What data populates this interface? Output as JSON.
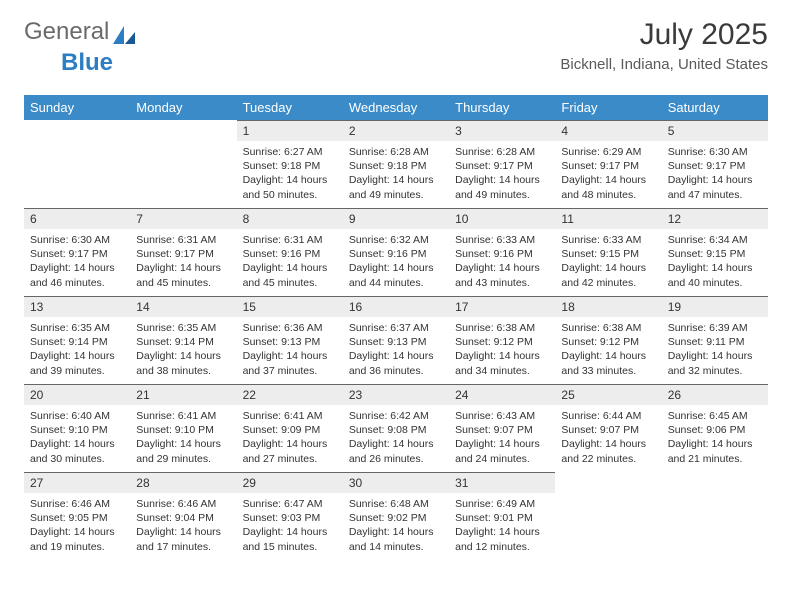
{
  "brand": {
    "text1": "General",
    "text2": "Blue"
  },
  "header": {
    "month_title": "July 2025",
    "location": "Bicknell, Indiana, United States"
  },
  "colors": {
    "header_bg": "#3b8bc9",
    "header_text": "#ffffff",
    "daynum_bg": "#ededed",
    "daynum_border": "#666666",
    "body_text": "#333333"
  },
  "day_labels": [
    "Sunday",
    "Monday",
    "Tuesday",
    "Wednesday",
    "Thursday",
    "Friday",
    "Saturday"
  ],
  "weeks": [
    [
      {
        "empty": true
      },
      {
        "empty": true
      },
      {
        "day": "1",
        "sunrise": "Sunrise: 6:27 AM",
        "sunset": "Sunset: 9:18 PM",
        "daylight": "Daylight: 14 hours and 50 minutes."
      },
      {
        "day": "2",
        "sunrise": "Sunrise: 6:28 AM",
        "sunset": "Sunset: 9:18 PM",
        "daylight": "Daylight: 14 hours and 49 minutes."
      },
      {
        "day": "3",
        "sunrise": "Sunrise: 6:28 AM",
        "sunset": "Sunset: 9:17 PM",
        "daylight": "Daylight: 14 hours and 49 minutes."
      },
      {
        "day": "4",
        "sunrise": "Sunrise: 6:29 AM",
        "sunset": "Sunset: 9:17 PM",
        "daylight": "Daylight: 14 hours and 48 minutes."
      },
      {
        "day": "5",
        "sunrise": "Sunrise: 6:30 AM",
        "sunset": "Sunset: 9:17 PM",
        "daylight": "Daylight: 14 hours and 47 minutes."
      }
    ],
    [
      {
        "day": "6",
        "sunrise": "Sunrise: 6:30 AM",
        "sunset": "Sunset: 9:17 PM",
        "daylight": "Daylight: 14 hours and 46 minutes."
      },
      {
        "day": "7",
        "sunrise": "Sunrise: 6:31 AM",
        "sunset": "Sunset: 9:17 PM",
        "daylight": "Daylight: 14 hours and 45 minutes."
      },
      {
        "day": "8",
        "sunrise": "Sunrise: 6:31 AM",
        "sunset": "Sunset: 9:16 PM",
        "daylight": "Daylight: 14 hours and 45 minutes."
      },
      {
        "day": "9",
        "sunrise": "Sunrise: 6:32 AM",
        "sunset": "Sunset: 9:16 PM",
        "daylight": "Daylight: 14 hours and 44 minutes."
      },
      {
        "day": "10",
        "sunrise": "Sunrise: 6:33 AM",
        "sunset": "Sunset: 9:16 PM",
        "daylight": "Daylight: 14 hours and 43 minutes."
      },
      {
        "day": "11",
        "sunrise": "Sunrise: 6:33 AM",
        "sunset": "Sunset: 9:15 PM",
        "daylight": "Daylight: 14 hours and 42 minutes."
      },
      {
        "day": "12",
        "sunrise": "Sunrise: 6:34 AM",
        "sunset": "Sunset: 9:15 PM",
        "daylight": "Daylight: 14 hours and 40 minutes."
      }
    ],
    [
      {
        "day": "13",
        "sunrise": "Sunrise: 6:35 AM",
        "sunset": "Sunset: 9:14 PM",
        "daylight": "Daylight: 14 hours and 39 minutes."
      },
      {
        "day": "14",
        "sunrise": "Sunrise: 6:35 AM",
        "sunset": "Sunset: 9:14 PM",
        "daylight": "Daylight: 14 hours and 38 minutes."
      },
      {
        "day": "15",
        "sunrise": "Sunrise: 6:36 AM",
        "sunset": "Sunset: 9:13 PM",
        "daylight": "Daylight: 14 hours and 37 minutes."
      },
      {
        "day": "16",
        "sunrise": "Sunrise: 6:37 AM",
        "sunset": "Sunset: 9:13 PM",
        "daylight": "Daylight: 14 hours and 36 minutes."
      },
      {
        "day": "17",
        "sunrise": "Sunrise: 6:38 AM",
        "sunset": "Sunset: 9:12 PM",
        "daylight": "Daylight: 14 hours and 34 minutes."
      },
      {
        "day": "18",
        "sunrise": "Sunrise: 6:38 AM",
        "sunset": "Sunset: 9:12 PM",
        "daylight": "Daylight: 14 hours and 33 minutes."
      },
      {
        "day": "19",
        "sunrise": "Sunrise: 6:39 AM",
        "sunset": "Sunset: 9:11 PM",
        "daylight": "Daylight: 14 hours and 32 minutes."
      }
    ],
    [
      {
        "day": "20",
        "sunrise": "Sunrise: 6:40 AM",
        "sunset": "Sunset: 9:10 PM",
        "daylight": "Daylight: 14 hours and 30 minutes."
      },
      {
        "day": "21",
        "sunrise": "Sunrise: 6:41 AM",
        "sunset": "Sunset: 9:10 PM",
        "daylight": "Daylight: 14 hours and 29 minutes."
      },
      {
        "day": "22",
        "sunrise": "Sunrise: 6:41 AM",
        "sunset": "Sunset: 9:09 PM",
        "daylight": "Daylight: 14 hours and 27 minutes."
      },
      {
        "day": "23",
        "sunrise": "Sunrise: 6:42 AM",
        "sunset": "Sunset: 9:08 PM",
        "daylight": "Daylight: 14 hours and 26 minutes."
      },
      {
        "day": "24",
        "sunrise": "Sunrise: 6:43 AM",
        "sunset": "Sunset: 9:07 PM",
        "daylight": "Daylight: 14 hours and 24 minutes."
      },
      {
        "day": "25",
        "sunrise": "Sunrise: 6:44 AM",
        "sunset": "Sunset: 9:07 PM",
        "daylight": "Daylight: 14 hours and 22 minutes."
      },
      {
        "day": "26",
        "sunrise": "Sunrise: 6:45 AM",
        "sunset": "Sunset: 9:06 PM",
        "daylight": "Daylight: 14 hours and 21 minutes."
      }
    ],
    [
      {
        "day": "27",
        "sunrise": "Sunrise: 6:46 AM",
        "sunset": "Sunset: 9:05 PM",
        "daylight": "Daylight: 14 hours and 19 minutes."
      },
      {
        "day": "28",
        "sunrise": "Sunrise: 6:46 AM",
        "sunset": "Sunset: 9:04 PM",
        "daylight": "Daylight: 14 hours and 17 minutes."
      },
      {
        "day": "29",
        "sunrise": "Sunrise: 6:47 AM",
        "sunset": "Sunset: 9:03 PM",
        "daylight": "Daylight: 14 hours and 15 minutes."
      },
      {
        "day": "30",
        "sunrise": "Sunrise: 6:48 AM",
        "sunset": "Sunset: 9:02 PM",
        "daylight": "Daylight: 14 hours and 14 minutes."
      },
      {
        "day": "31",
        "sunrise": "Sunrise: 6:49 AM",
        "sunset": "Sunset: 9:01 PM",
        "daylight": "Daylight: 14 hours and 12 minutes."
      },
      {
        "empty": true
      },
      {
        "empty": true
      }
    ]
  ]
}
